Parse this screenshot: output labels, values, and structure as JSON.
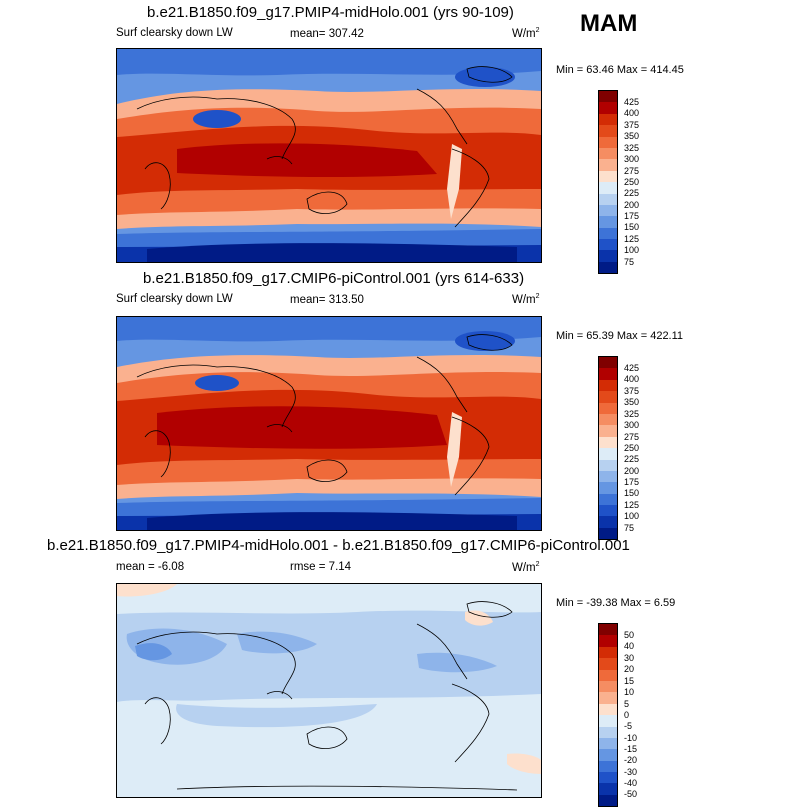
{
  "season": "MAM",
  "colors": {
    "abs_scale": [
      "#800000",
      "#b10000",
      "#d32c05",
      "#e34a1a",
      "#ef6a3a",
      "#f58d62",
      "#fab18f",
      "#fde0cd",
      "#ddecf7",
      "#b7d1f0",
      "#8eb4ea",
      "#6596e2",
      "#3d73d7",
      "#1f52c8",
      "#0a33aa",
      "#001b86"
    ],
    "diff_scale": [
      "#800000",
      "#b10000",
      "#d32c05",
      "#e34a1a",
      "#ef6a3a",
      "#f58d62",
      "#fab18f",
      "#fde0cd",
      "#ddecf7",
      "#b7d1f0",
      "#8eb4ea",
      "#6596e2",
      "#3d73d7",
      "#1f52c8",
      "#0a33aa",
      "#001b86"
    ]
  },
  "panels": [
    {
      "title": "b.e21.B1850.f09_g17.PMIP4-midHolo.001 (yrs 90-109)",
      "variable": "Surf clearsky down LW",
      "mean_label": "mean=",
      "mean": "307.42",
      "units": "W/m",
      "units_exp": "2",
      "min_label": "Min =",
      "min": "63.46",
      "max_label": "Max =",
      "max": "414.45",
      "ticks": [
        "425",
        "400",
        "375",
        "350",
        "325",
        "300",
        "275",
        "250",
        "225",
        "200",
        "175",
        "150",
        "125",
        "100",
        "75"
      ]
    },
    {
      "title": "b.e21.B1850.f09_g17.CMIP6-piControl.001 (yrs 614-633)",
      "variable": "Surf clearsky down LW",
      "mean_label": "mean=",
      "mean": "313.50",
      "units": "W/m",
      "units_exp": "2",
      "min_label": "Min =",
      "min": "65.39",
      "max_label": "Max =",
      "max": "422.11",
      "ticks": [
        "425",
        "400",
        "375",
        "350",
        "325",
        "300",
        "275",
        "250",
        "225",
        "200",
        "175",
        "150",
        "125",
        "100",
        "75"
      ]
    },
    {
      "title": "b.e21.B1850.f09_g17.PMIP4-midHolo.001 - b.e21.B1850.f09_g17.CMIP6-piControl.001",
      "mean_label": "mean =",
      "mean": "-6.08",
      "rmse_label": "rmse =",
      "rmse": "7.14",
      "units": "W/m",
      "units_exp": "2",
      "min_label": "Min =",
      "min": "-39.38",
      "max_label": "Max =",
      "max": "6.59",
      "ticks": [
        "50",
        "40",
        "30",
        "20",
        "15",
        "10",
        "5",
        "0",
        "-5",
        "-10",
        "-15",
        "-20",
        "-30",
        "-40",
        "-50"
      ]
    }
  ]
}
